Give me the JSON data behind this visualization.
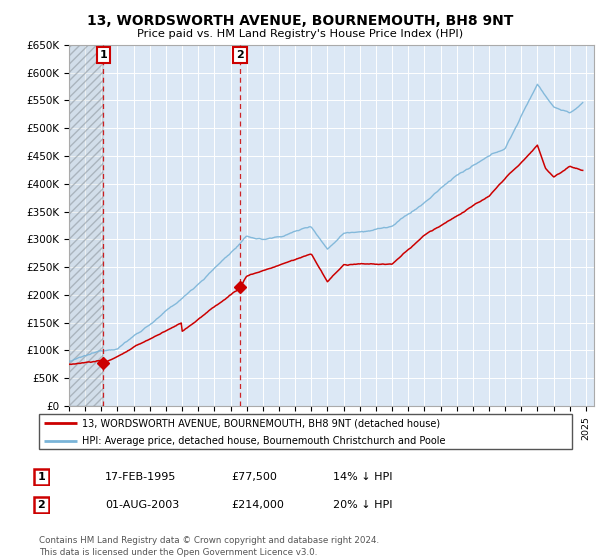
{
  "title_line1": "13, WORDSWORTH AVENUE, BOURNEMOUTH, BH8 9NT",
  "title_line2": "Price paid vs. HM Land Registry's House Price Index (HPI)",
  "ylabel_ticks": [
    "£0",
    "£50K",
    "£100K",
    "£150K",
    "£200K",
    "£250K",
    "£300K",
    "£350K",
    "£400K",
    "£450K",
    "£500K",
    "£550K",
    "£600K",
    "£650K"
  ],
  "ytick_values": [
    0,
    50000,
    100000,
    150000,
    200000,
    250000,
    300000,
    350000,
    400000,
    450000,
    500000,
    550000,
    600000,
    650000
  ],
  "xlim_start": 1993.0,
  "xlim_end": 2025.5,
  "ylim_min": 0,
  "ylim_max": 650000,
  "purchase1_date": 1995.12,
  "purchase1_price": 77500,
  "purchase2_date": 2003.58,
  "purchase2_price": 214000,
  "legend_line1": "13, WORDSWORTH AVENUE, BOURNEMOUTH, BH8 9NT (detached house)",
  "legend_line2": "HPI: Average price, detached house, Bournemouth Christchurch and Poole",
  "table_row1": [
    "1",
    "17-FEB-1995",
    "£77,500",
    "14% ↓ HPI"
  ],
  "table_row2": [
    "2",
    "01-AUG-2003",
    "£214,000",
    "20% ↓ HPI"
  ],
  "footnote": "Contains HM Land Registry data © Crown copyright and database right 2024.\nThis data is licensed under the Open Government Licence v3.0.",
  "hpi_color": "#7ab4d8",
  "sold_color": "#cc0000",
  "bg_color": "#dce8f5",
  "grid_color": "#ffffff",
  "hatch_region_color": "#c0c8d0"
}
